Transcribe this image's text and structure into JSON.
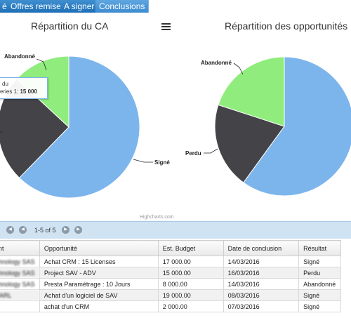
{
  "tabs": [
    {
      "label": "é",
      "active": false
    },
    {
      "label": "Offres remise",
      "active": false
    },
    {
      "label": "A signer",
      "active": false
    },
    {
      "label": "Conclusions",
      "active": true
    }
  ],
  "charts": {
    "left_title": "Répartition du CA",
    "right_title": "Répartition des opportunités",
    "credits": "Highcharts.com",
    "tooltip": {
      "line1": "du",
      "line2_prefix": "eries 1: ",
      "line2_value": "15 000"
    }
  },
  "chart_data": [
    {
      "type": "pie",
      "title": "Répartition du CA",
      "slices": [
        {
          "label": "Signé",
          "value": 38000,
          "color": "#7cb5ec"
        },
        {
          "label": "",
          "value": 15000,
          "color": "#434348"
        },
        {
          "label": "Abandonné",
          "value": 8000,
          "color": "#90ed7d"
        }
      ]
    },
    {
      "type": "pie",
      "title": "Répartition des opportunités",
      "slices": [
        {
          "label": "",
          "value": 3,
          "color": "#7cb5ec"
        },
        {
          "label": "Perdu",
          "value": 1,
          "color": "#434348"
        },
        {
          "label": "Abandonné",
          "value": 1,
          "color": "#90ed7d"
        }
      ]
    }
  ],
  "pager": {
    "info": "1-5 of 5"
  },
  "table": {
    "headers": [
      "ent",
      "Opportunité",
      "Est. Budget",
      "Date de conclusion",
      "Résultat"
    ],
    "rows": [
      [
        "chnology SAS",
        "Achat CRM : 15 Licenses",
        "17 000.00",
        "14/03/2016",
        "Signé"
      ],
      [
        "chnology SAS",
        "Project SAV - ADV",
        "15 000.00",
        "16/03/2016",
        "Perdu"
      ],
      [
        "chnology SAS",
        "Presta Paramétrage : 10 Jours",
        "8 000.00",
        "14/03/2016",
        "Abandonné"
      ],
      [
        "SARL",
        "Achat d'un logiciel de SAV",
        "19 000.00",
        "08/03/2016",
        "Signé"
      ],
      [
        "",
        "achat d'un CRM",
        "2 000.00",
        "07/03/2016",
        "Signé"
      ]
    ]
  }
}
